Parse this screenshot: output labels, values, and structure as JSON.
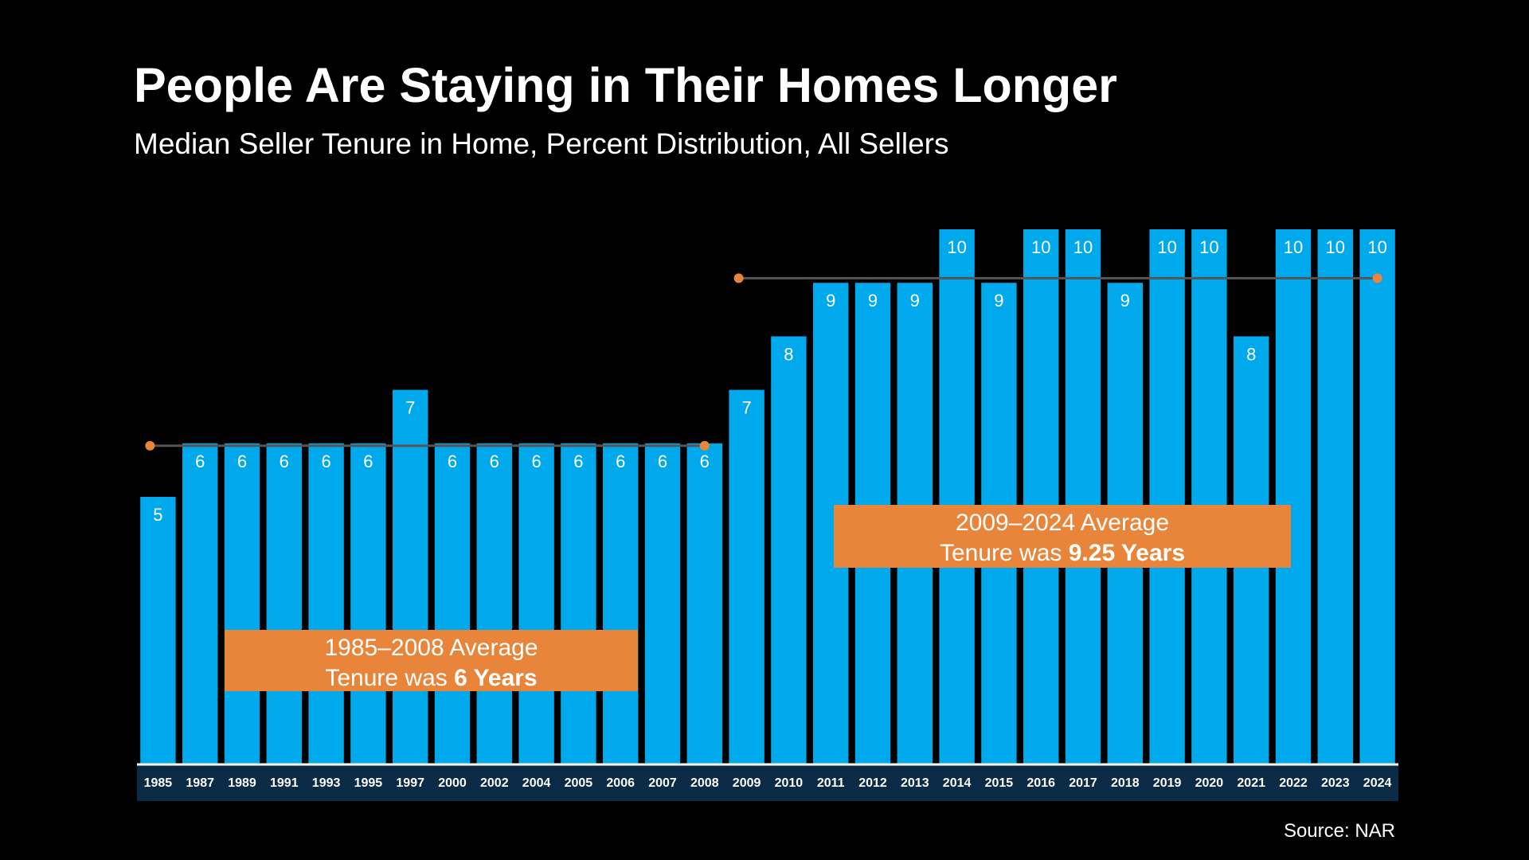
{
  "title": "People Are Staying in Their Homes Longer",
  "subtitle": "Median Seller Tenure in Home, Percent Distribution, All Sellers",
  "source": "Source: NAR",
  "colors": {
    "background": "#000000",
    "bar": "#00A9EC",
    "axis_band": "#0B2A45",
    "callout": "#E8853A",
    "average_line": "#E8853A"
  },
  "annotations": {
    "early": {
      "line1": "1985–2008 Average",
      "line2_prefix": "Tenure was ",
      "line2_bold": "6 Years",
      "from": "1985",
      "to": "2008",
      "value": 6
    },
    "late": {
      "line1": "2009–2024 Average",
      "line2_prefix": "Tenure was ",
      "line2_bold": "9.25 Years",
      "from": "2009",
      "to": "2024",
      "value": 9.25
    }
  },
  "chart_data": {
    "type": "bar",
    "title": "People Are Staying in Their Homes Longer",
    "subtitle": "Median Seller Tenure in Home, Percent Distribution, All Sellers",
    "xlabel": "",
    "ylabel": "",
    "categories": [
      "1985",
      "1987",
      "1989",
      "1991",
      "1993",
      "1995",
      "1997",
      "2000",
      "2002",
      "2004",
      "2005",
      "2006",
      "2007",
      "2008",
      "2009",
      "2010",
      "2011",
      "2012",
      "2013",
      "2014",
      "2015",
      "2016",
      "2017",
      "2018",
      "2019",
      "2020",
      "2021",
      "2022",
      "2023",
      "2024"
    ],
    "values": [
      5,
      6,
      6,
      6,
      6,
      6,
      7,
      6,
      6,
      6,
      6,
      6,
      6,
      6,
      7,
      8,
      9,
      9,
      9,
      10,
      9,
      10,
      10,
      9,
      10,
      10,
      8,
      10,
      10,
      10
    ],
    "ylim": [
      0,
      10
    ],
    "grid": false,
    "data_labels": true
  }
}
